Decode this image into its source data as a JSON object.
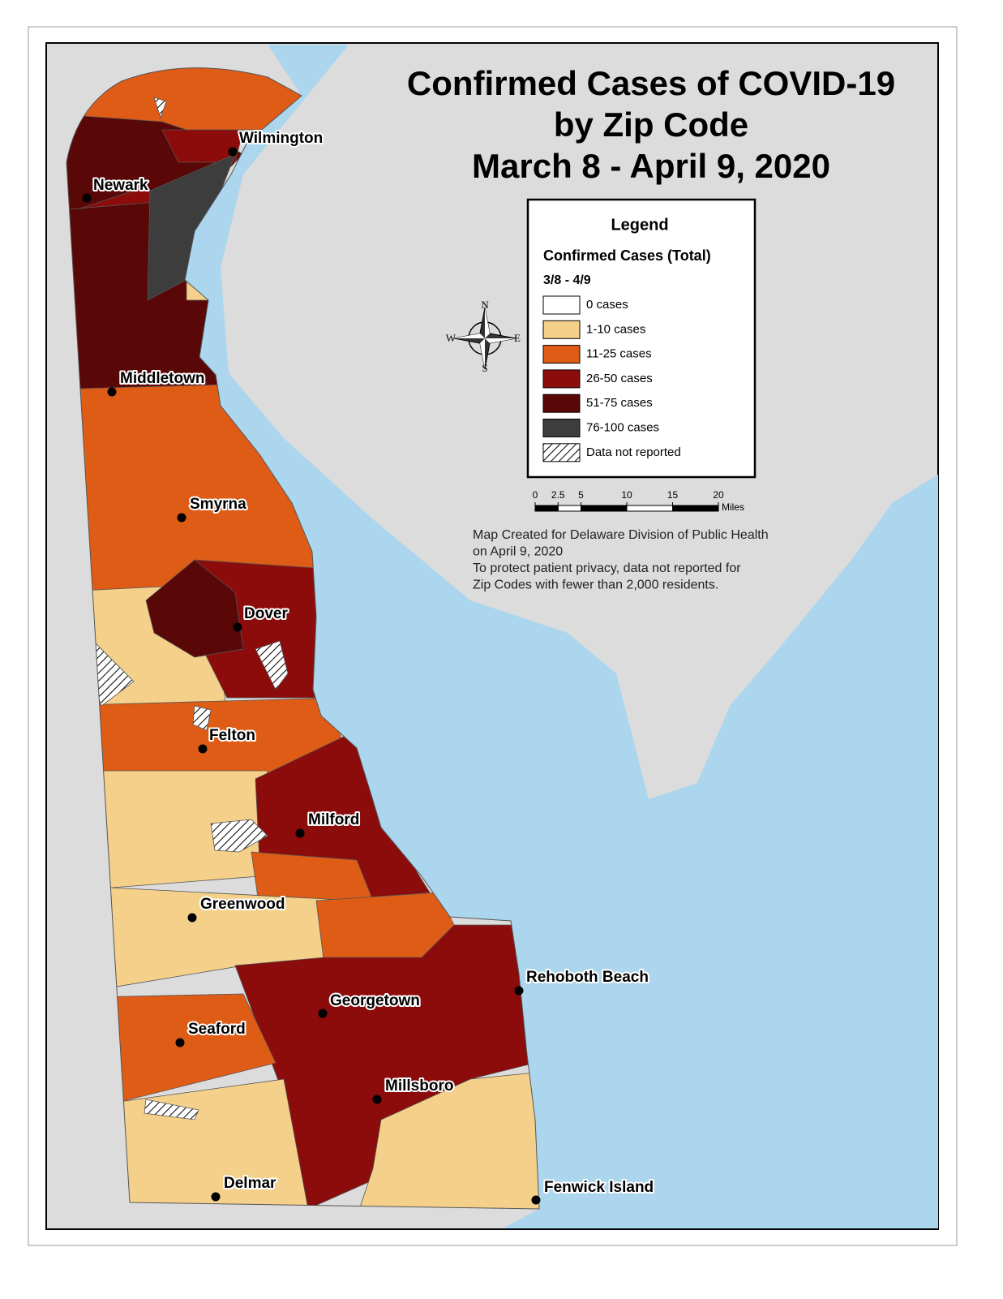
{
  "map": {
    "title": [
      "Confirmed Cases of COVID-19",
      "by Zip Code",
      "March 8 - April 9, 2020"
    ],
    "legend": {
      "title": "Legend",
      "subtitle": "Confirmed Cases (Total)",
      "period": "3/8 - 4/9",
      "items": [
        {
          "label": "0 cases",
          "color": "#ffffff"
        },
        {
          "label": "1-10 cases",
          "color": "#f4d08b"
        },
        {
          "label": "11-25 cases",
          "color": "#df5c16"
        },
        {
          "label": "26-50 cases",
          "color": "#8c0b0b"
        },
        {
          "label": "51-75 cases",
          "color": "#590707"
        },
        {
          "label": "76-100 cases",
          "color": "#3d3d3d"
        },
        {
          "label": "Data not reported",
          "pattern": "hatch"
        }
      ]
    },
    "compass": {
      "n": "N",
      "s": "S",
      "e": "E",
      "w": "W"
    },
    "scale": {
      "ticks": [
        0,
        2.5,
        5,
        10,
        15,
        20
      ],
      "unit": "Miles"
    },
    "notes": [
      "Map Created for Delaware Division of Public Health",
      "on April 9, 2020",
      "To protect patient privacy, data not reported for",
      "Zip Codes with fewer than 2,000 residents."
    ],
    "cities": [
      "Wilmington",
      "Newark",
      "Middletown",
      "Smyrna",
      "Dover",
      "Felton",
      "Milford",
      "Greenwood",
      "Rehoboth Beach",
      "Georgetown",
      "Seaford",
      "Millsboro",
      "Delmar",
      "Fenwick Island"
    ]
  }
}
